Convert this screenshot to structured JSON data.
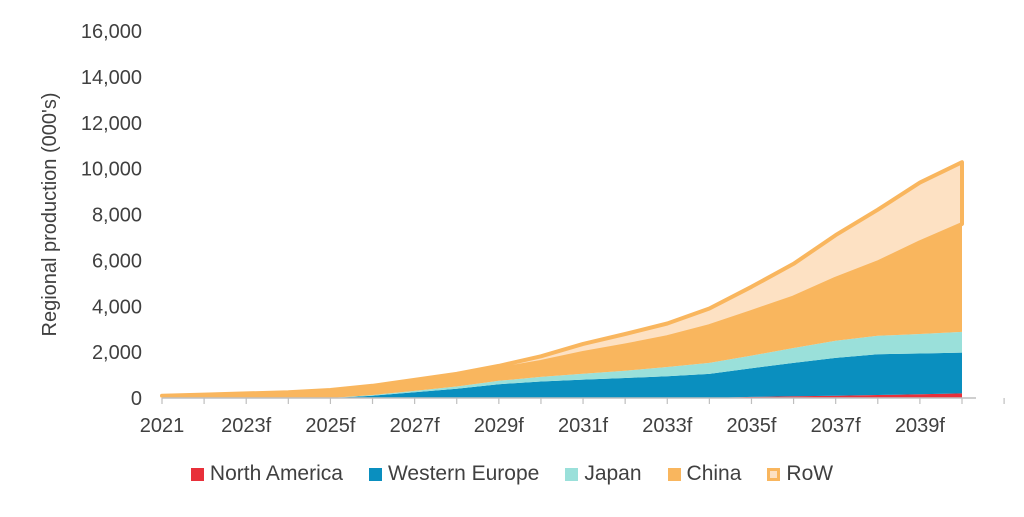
{
  "chart_data": {
    "type": "area",
    "stacked": true,
    "title": "",
    "xlabel": "",
    "ylabel": "Regional production (000's)",
    "ylim": [
      0,
      16000
    ],
    "yticks": [
      "0",
      "2,000",
      "4,000",
      "6,000",
      "8,000",
      "10,000",
      "12,000",
      "14,000",
      "16,000"
    ],
    "x": [
      "2021",
      "2022f",
      "2023f",
      "2024f",
      "2025f",
      "2026f",
      "2027f",
      "2028f",
      "2029f",
      "2030f",
      "2031f",
      "2032f",
      "2033f",
      "2034f",
      "2035f",
      "2036f",
      "2037f",
      "2038f",
      "2039f",
      "2040f"
    ],
    "xtick_labels": [
      "2021",
      "2023f",
      "2025f",
      "2027f",
      "2029f",
      "2031f",
      "2033f",
      "2035f",
      "2037f",
      "2039f"
    ],
    "grid": false,
    "legend_position": "bottom",
    "series": [
      {
        "name": "North America",
        "color": "#e8303a",
        "values": [
          0,
          0,
          0,
          0,
          0,
          0,
          0,
          0,
          0,
          0,
          0,
          0,
          0,
          0,
          50,
          80,
          100,
          130,
          160,
          200
        ]
      },
      {
        "name": "Western Europe",
        "color": "#0a8fbf",
        "values": [
          0,
          0,
          0,
          0,
          0,
          100,
          250,
          400,
          600,
          720,
          800,
          870,
          950,
          1050,
          1250,
          1450,
          1650,
          1780,
          1780,
          1780
        ]
      },
      {
        "name": "Japan",
        "color": "#9ae0da",
        "values": [
          0,
          0,
          0,
          0,
          0,
          30,
          60,
          100,
          150,
          200,
          260,
          320,
          400,
          480,
          550,
          650,
          750,
          800,
          850,
          900
        ]
      },
      {
        "name": "China",
        "color": "#f9b65e",
        "values": [
          100,
          150,
          200,
          250,
          300,
          350,
          400,
          450,
          500,
          650,
          900,
          1100,
          1300,
          1600,
          1900,
          2200,
          2700,
          3200,
          4000,
          4700
        ]
      },
      {
        "name": "RoW",
        "color": "#fde1c3",
        "border": "#f9b65e",
        "values": [
          0,
          0,
          0,
          0,
          50,
          50,
          80,
          100,
          150,
          250,
          400,
          500,
          600,
          770,
          1100,
          1470,
          1900,
          2300,
          2600,
          2700
        ]
      }
    ]
  }
}
